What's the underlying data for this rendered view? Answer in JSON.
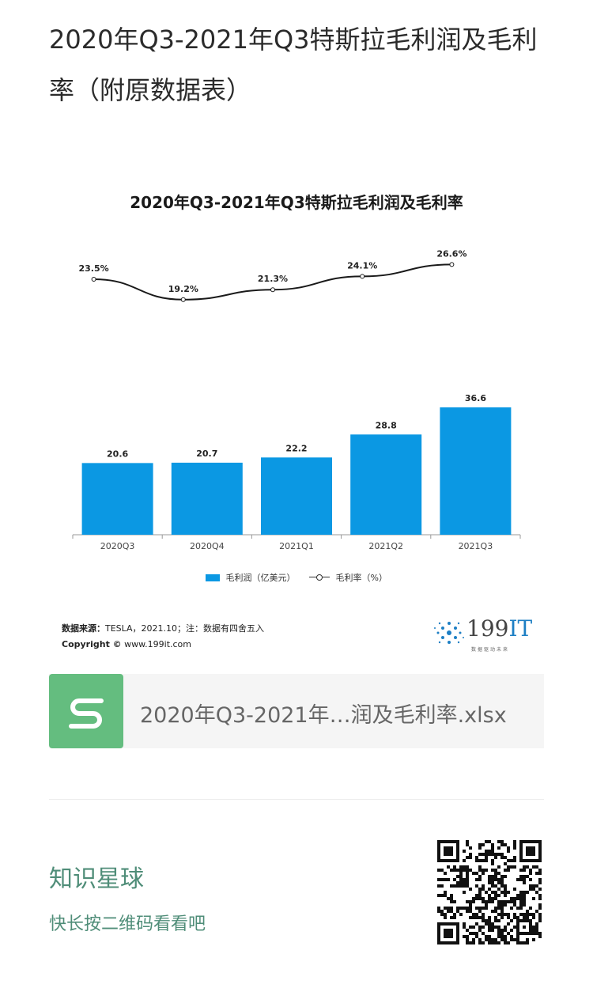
{
  "article": {
    "title": "2020年Q3-2021年Q3特斯拉毛利润及毛利率（附原数据表）"
  },
  "chart_data": {
    "type": "bar",
    "title": "2020年Q3-2021年Q3特斯拉毛利润及毛利率",
    "categories": [
      "2020Q3",
      "2020Q4",
      "2021Q1",
      "2021Q2",
      "2021Q3"
    ],
    "series": [
      {
        "name": "毛利润（亿美元）",
        "type": "bar",
        "color": "#0b98e3",
        "values": [
          20.6,
          20.7,
          22.2,
          28.8,
          36.6
        ]
      },
      {
        "name": "毛利率（%）",
        "type": "line",
        "color": "#1a1a1a",
        "values": [
          23.5,
          19.2,
          21.3,
          24.1,
          26.6
        ]
      }
    ],
    "bar_labels": [
      "20.6",
      "20.7",
      "22.2",
      "28.8",
      "36.6"
    ],
    "line_labels": [
      "23.5%",
      "19.2%",
      "21.3%",
      "24.1%",
      "26.6%"
    ],
    "legend": {
      "position": "bottom",
      "bar": "毛利润（亿美元）",
      "line": "毛利率（%）"
    },
    "grid": false,
    "source": {
      "label": "数据来源：",
      "text": "TESLA，2021.10；注：数据有四舍五入"
    },
    "copyright": {
      "label": "Copyright ©",
      "text": " www.199it.com"
    }
  },
  "logo": {
    "main": "199",
    "accent": "IT",
    "tagline": "数据驱动未来"
  },
  "attachment": {
    "filename": "2020年Q3-2021年…润及毛利率.xlsx",
    "icon": "spreadsheet-icon",
    "icon_color": "#64bd7f"
  },
  "footer": {
    "title": "知识星球",
    "subtitle": "快长按二维码看看吧",
    "text_color": "#4f8d78"
  }
}
